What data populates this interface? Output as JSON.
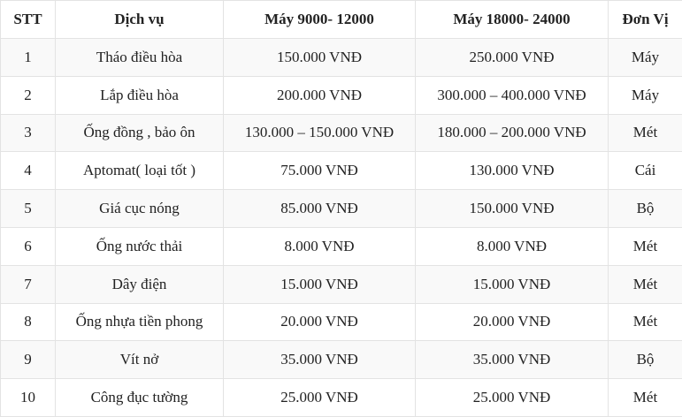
{
  "table": {
    "headers": [
      "STT",
      "Dịch vụ",
      "Máy 9000- 12000",
      "Máy 18000- 24000",
      "Đơn Vị"
    ],
    "rows": [
      [
        "1",
        "Tháo điều hòa",
        "150.000 VNĐ",
        "250.000 VNĐ",
        "Máy"
      ],
      [
        "2",
        "Lắp điều hòa",
        "200.000 VNĐ",
        "300.000 – 400.000 VNĐ",
        "Máy"
      ],
      [
        "3",
        "Ống đồng , bảo ôn",
        "130.000 – 150.000 VNĐ",
        "180.000 – 200.000 VNĐ",
        "Mét"
      ],
      [
        "4",
        "Aptomat( loại tốt )",
        "75.000 VNĐ",
        "130.000 VNĐ",
        "Cái"
      ],
      [
        "5",
        "Giá cục nóng",
        "85.000 VNĐ",
        "150.000 VNĐ",
        "Bộ"
      ],
      [
        "6",
        "Ống nước thải",
        "8.000 VNĐ",
        "8.000 VNĐ",
        "Mét"
      ],
      [
        "7",
        "Dây điện",
        "15.000 VNĐ",
        "15.000 VNĐ",
        "Mét"
      ],
      [
        "8",
        "Ống nhựa tiền phong",
        "20.000 VNĐ",
        "20.000 VNĐ",
        "Mét"
      ],
      [
        "9",
        "Vít nở",
        "35.000 VNĐ",
        "35.000 VNĐ",
        "Bộ"
      ],
      [
        "10",
        "Công đục tường",
        "25.000 VNĐ",
        "25.000 VNĐ",
        "Mét"
      ]
    ]
  }
}
